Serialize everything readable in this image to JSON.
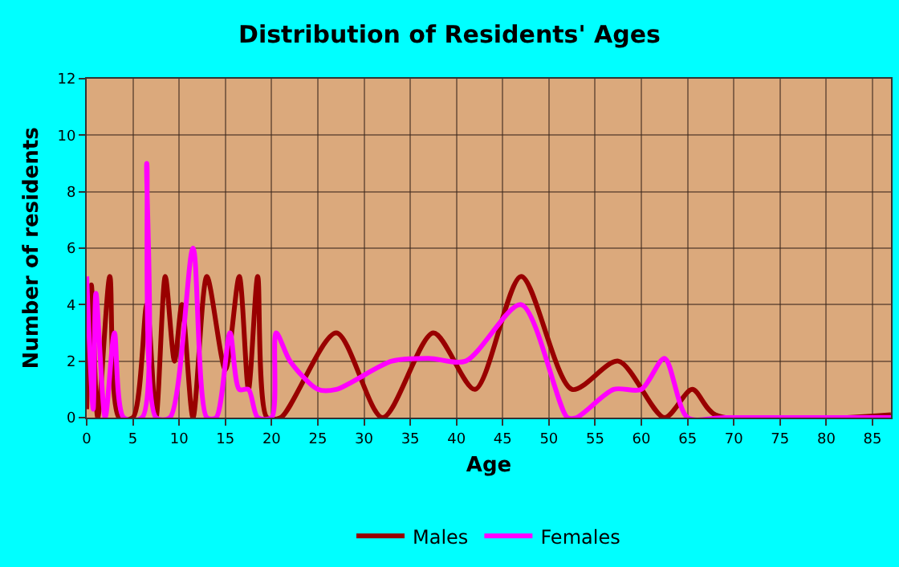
{
  "chart_data": {
    "type": "line",
    "title": "Distribution of Residents' Ages",
    "xlabel": "Age",
    "ylabel": "Number of residents",
    "xlim": [
      0,
      87
    ],
    "xticks": [
      0,
      5,
      10,
      15,
      20,
      25,
      30,
      35,
      40,
      45,
      50,
      55,
      60,
      65,
      70,
      75,
      80,
      85
    ],
    "ylim": [
      0,
      12
    ],
    "yticks": [
      0,
      2,
      4,
      6,
      8,
      10,
      12
    ],
    "grid": true,
    "legend": "bottom",
    "marker": "none",
    "line_style": "solid",
    "series": [
      {
        "name": "Males",
        "color": "#990000",
        "x": [
          0,
          0.5,
          1.2,
          2.5,
          3.5,
          5,
          6.5,
          7.5,
          8.5,
          9.5,
          10.3,
          11.5,
          13,
          15,
          16.5,
          17.5,
          18.5,
          19.5,
          21,
          27,
          32,
          37.5,
          42,
          47,
          52.5,
          57.5,
          62.5,
          65.5,
          68,
          87
        ],
        "values": [
          0.3,
          4.7,
          0,
          5,
          0,
          0,
          4,
          0,
          5,
          2,
          4,
          0,
          5,
          1.7,
          5,
          1,
          5,
          0,
          0,
          3,
          0,
          3,
          1,
          5,
          1,
          2,
          0,
          1,
          0.1,
          0.1
        ]
      },
      {
        "name": "Females",
        "color": "#ff00ff",
        "x": [
          0,
          0.7,
          1,
          2,
          3,
          4,
          6,
          6.5,
          7.5,
          9,
          11.5,
          13,
          14,
          15.5,
          16.5,
          17.5,
          18.5,
          20,
          20.5,
          22,
          25,
          27,
          33,
          37,
          41,
          47,
          52,
          53,
          57,
          60,
          62.5,
          65,
          69,
          87
        ],
        "values": [
          5,
          0.3,
          4.4,
          0,
          3,
          0,
          0,
          9,
          0,
          0,
          6,
          0,
          0,
          3,
          1,
          1,
          0,
          0,
          3,
          2,
          1,
          1,
          2,
          2.1,
          2,
          4,
          0,
          0,
          1,
          1,
          2.1,
          0,
          0,
          0
        ]
      }
    ]
  }
}
